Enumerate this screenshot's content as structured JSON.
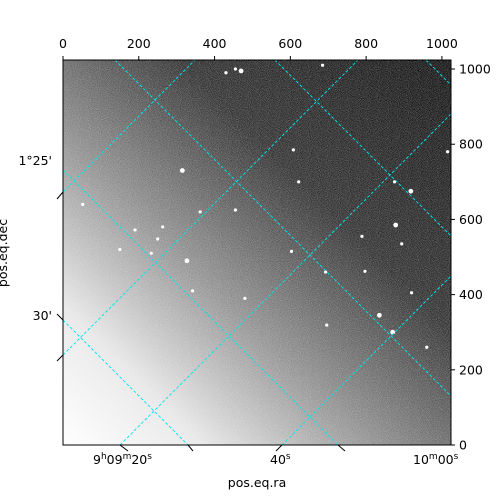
{
  "chart_data": {
    "type": "image",
    "title": "",
    "xlabel": "pos.eq.ra",
    "ylabel": "pos.eq.dec",
    "pixel_axes": {
      "top_ticks": [
        0,
        200,
        400,
        600,
        800,
        1000
      ],
      "right_ticks": [
        0,
        200,
        400,
        600,
        800,
        1000
      ],
      "xlim": [
        0,
        1024
      ],
      "ylim": [
        0,
        1024
      ]
    },
    "world_axes": {
      "bottom_ticks": [
        {
          "key": "ra1",
          "h": "9",
          "m": "09",
          "s": "20"
        },
        {
          "key": "ra2",
          "s": "40"
        },
        {
          "key": "ra3",
          "m": "10",
          "s": "00"
        }
      ],
      "left_ticks": [
        {
          "key": "dec1",
          "label": "1°25'"
        },
        {
          "key": "dec2",
          "label": "30'"
        }
      ]
    },
    "grid": true,
    "grid_color": "#00e5ee",
    "colormap": "gray",
    "background_gradient": "dark at top-right, fading to white at bottom-left",
    "stars": [
      {
        "x": 470,
        "y": 995
      },
      {
        "x": 430,
        "y": 990
      },
      {
        "x": 685,
        "y": 1010
      },
      {
        "x": 455,
        "y": 1000
      },
      {
        "x": 608,
        "y": 785
      },
      {
        "x": 315,
        "y": 730
      },
      {
        "x": 622,
        "y": 700
      },
      {
        "x": 1015,
        "y": 780
      },
      {
        "x": 52,
        "y": 640
      },
      {
        "x": 875,
        "y": 700
      },
      {
        "x": 918,
        "y": 675
      },
      {
        "x": 250,
        "y": 548
      },
      {
        "x": 190,
        "y": 572
      },
      {
        "x": 263,
        "y": 580
      },
      {
        "x": 233,
        "y": 510
      },
      {
        "x": 327,
        "y": 490
      },
      {
        "x": 603,
        "y": 515
      },
      {
        "x": 693,
        "y": 460
      },
      {
        "x": 789,
        "y": 555
      },
      {
        "x": 797,
        "y": 462
      },
      {
        "x": 878,
        "y": 585
      },
      {
        "x": 894,
        "y": 535
      },
      {
        "x": 342,
        "y": 410
      },
      {
        "x": 480,
        "y": 390
      },
      {
        "x": 696,
        "y": 319
      },
      {
        "x": 835,
        "y": 345
      },
      {
        "x": 362,
        "y": 620
      },
      {
        "x": 455,
        "y": 625
      },
      {
        "x": 920,
        "y": 405
      },
      {
        "x": 960,
        "y": 260
      },
      {
        "x": 870,
        "y": 300
      },
      {
        "x": 150,
        "y": 520
      }
    ]
  }
}
